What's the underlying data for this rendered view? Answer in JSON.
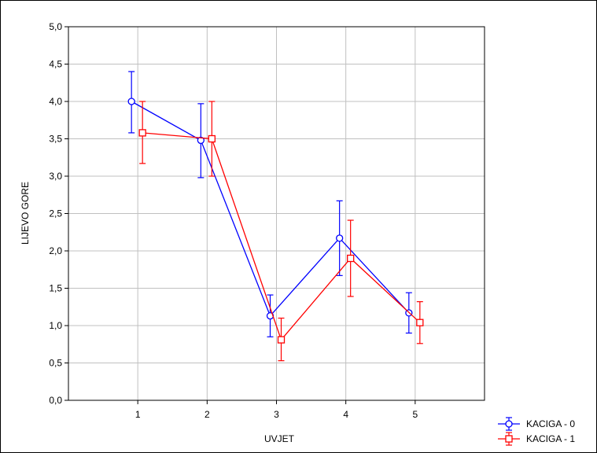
{
  "chart_data": {
    "type": "line",
    "title": "",
    "xlabel": "UVJET",
    "ylabel": "LIJEVO GORE",
    "categories": [
      "1",
      "2",
      "3",
      "4",
      "5"
    ],
    "ylim": [
      0,
      5
    ],
    "yticks": [
      "0,0",
      "0,5",
      "1,0",
      "1,5",
      "2,0",
      "2,5",
      "3,0",
      "3,5",
      "4,0",
      "4,5",
      "5,0"
    ],
    "grid": true,
    "legend_position": "bottom-right",
    "series": [
      {
        "name": "KACIGA - 0",
        "color": "#0000ff",
        "marker": "circle",
        "values": [
          4.0,
          3.48,
          1.13,
          2.17,
          1.17
        ],
        "err_low": [
          3.58,
          2.98,
          0.85,
          1.67,
          0.9
        ],
        "err_high": [
          4.4,
          3.97,
          1.41,
          2.67,
          1.44
        ]
      },
      {
        "name": "KACIGA - 1",
        "color": "#ff0000",
        "marker": "square",
        "values": [
          3.58,
          3.5,
          0.81,
          1.9,
          1.04
        ],
        "err_low": [
          3.17,
          3.0,
          0.53,
          1.39,
          0.76
        ],
        "err_high": [
          4.0,
          4.0,
          1.1,
          2.41,
          1.32
        ]
      }
    ]
  }
}
